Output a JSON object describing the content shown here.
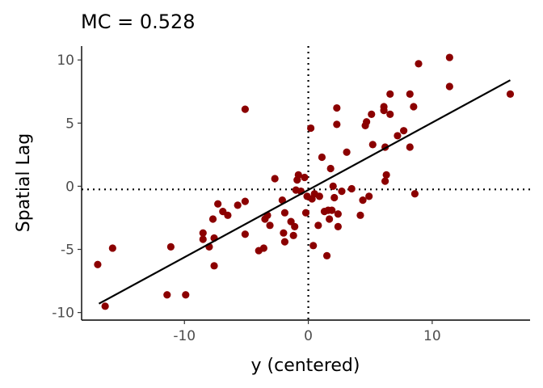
{
  "chart_data": {
    "type": "scatter",
    "title": "MC = 0.528",
    "xlabel": "y (centered)",
    "ylabel": "Spatial Lag",
    "xlim": [
      -18.3,
      17.9
    ],
    "ylim": [
      -10.6,
      11.1
    ],
    "x_ticks": [
      -10,
      0,
      10
    ],
    "x_tick_labels": [
      "-10",
      "0",
      "10"
    ],
    "y_ticks": [
      -10,
      -5,
      0,
      5,
      10
    ],
    "y_tick_labels": [
      "-10",
      "-5",
      "0",
      "5",
      "10"
    ],
    "grid": false,
    "legend": "none",
    "point_color": "#8b0000",
    "line_color": "#000000",
    "regression_line": {
      "x": [
        -16.9,
        16.3
      ],
      "y": [
        -9.3,
        8.4
      ]
    },
    "reference_lines": {
      "x_mean": 0.0,
      "y_mean": -0.25,
      "style": "dotted"
    },
    "points": [
      {
        "x": -17.0,
        "y": -6.2
      },
      {
        "x": -15.8,
        "y": -4.9
      },
      {
        "x": -16.4,
        "y": -9.5
      },
      {
        "x": -11.4,
        "y": -8.6
      },
      {
        "x": -11.1,
        "y": -4.8
      },
      {
        "x": -9.9,
        "y": -8.6
      },
      {
        "x": -8.5,
        "y": -3.7
      },
      {
        "x": -8.5,
        "y": -4.2
      },
      {
        "x": -8.0,
        "y": -4.8
      },
      {
        "x": -7.7,
        "y": -2.6
      },
      {
        "x": -7.6,
        "y": -4.1
      },
      {
        "x": -7.6,
        "y": -6.3
      },
      {
        "x": -7.3,
        "y": -1.4
      },
      {
        "x": -6.9,
        "y": -2.0
      },
      {
        "x": -6.5,
        "y": -2.3
      },
      {
        "x": -5.7,
        "y": -1.5
      },
      {
        "x": -5.1,
        "y": -1.2
      },
      {
        "x": -5.1,
        "y": -3.8
      },
      {
        "x": -5.1,
        "y": 6.1
      },
      {
        "x": -4.0,
        "y": -5.1
      },
      {
        "x": -3.6,
        "y": -4.9
      },
      {
        "x": -3.5,
        "y": -2.6
      },
      {
        "x": -3.3,
        "y": -2.3
      },
      {
        "x": -3.1,
        "y": -3.1
      },
      {
        "x": -2.7,
        "y": 0.6
      },
      {
        "x": -2.1,
        "y": -1.1
      },
      {
        "x": -2.0,
        "y": -3.7
      },
      {
        "x": -1.9,
        "y": -4.4
      },
      {
        "x": -1.9,
        "y": -2.1
      },
      {
        "x": -1.4,
        "y": -2.8
      },
      {
        "x": -1.2,
        "y": -3.9
      },
      {
        "x": -1.1,
        "y": -3.2
      },
      {
        "x": -1.0,
        "y": -0.3
      },
      {
        "x": -0.9,
        "y": 0.5
      },
      {
        "x": -0.8,
        "y": 0.9
      },
      {
        "x": -0.6,
        "y": -0.4
      },
      {
        "x": -0.3,
        "y": 0.7
      },
      {
        "x": -0.2,
        "y": -2.1
      },
      {
        "x": -0.1,
        "y": -0.8
      },
      {
        "x": 0.2,
        "y": 4.6
      },
      {
        "x": 0.3,
        "y": -1.0
      },
      {
        "x": 0.4,
        "y": -4.7
      },
      {
        "x": 0.5,
        "y": -0.6
      },
      {
        "x": 0.8,
        "y": -3.1
      },
      {
        "x": 0.9,
        "y": -0.8
      },
      {
        "x": 1.1,
        "y": 2.3
      },
      {
        "x": 1.3,
        "y": -2.0
      },
      {
        "x": 1.5,
        "y": -5.5
      },
      {
        "x": 1.6,
        "y": -1.9
      },
      {
        "x": 1.7,
        "y": -2.6
      },
      {
        "x": 1.8,
        "y": 1.4
      },
      {
        "x": 1.9,
        "y": -1.9
      },
      {
        "x": 2.0,
        "y": 0.0
      },
      {
        "x": 2.1,
        "y": -0.9
      },
      {
        "x": 2.3,
        "y": 6.2
      },
      {
        "x": 2.3,
        "y": 4.9
      },
      {
        "x": 2.4,
        "y": -3.2
      },
      {
        "x": 2.4,
        "y": -2.2
      },
      {
        "x": 2.7,
        "y": -0.4
      },
      {
        "x": 3.1,
        "y": 2.7
      },
      {
        "x": 3.5,
        "y": -0.2
      },
      {
        "x": 4.2,
        "y": -2.3
      },
      {
        "x": 4.4,
        "y": -1.1
      },
      {
        "x": 4.6,
        "y": 4.8
      },
      {
        "x": 4.7,
        "y": 5.1
      },
      {
        "x": 4.9,
        "y": -0.8
      },
      {
        "x": 5.1,
        "y": 5.7
      },
      {
        "x": 5.2,
        "y": 3.3
      },
      {
        "x": 6.1,
        "y": 6.0
      },
      {
        "x": 6.1,
        "y": 6.3
      },
      {
        "x": 6.2,
        "y": 3.1
      },
      {
        "x": 6.2,
        "y": 0.4
      },
      {
        "x": 6.3,
        "y": 0.9
      },
      {
        "x": 6.6,
        "y": 7.3
      },
      {
        "x": 6.6,
        "y": 5.7
      },
      {
        "x": 7.2,
        "y": 4.0
      },
      {
        "x": 7.7,
        "y": 4.4
      },
      {
        "x": 8.2,
        "y": 7.3
      },
      {
        "x": 8.2,
        "y": 3.1
      },
      {
        "x": 8.5,
        "y": 6.3
      },
      {
        "x": 8.6,
        "y": -0.6
      },
      {
        "x": 8.9,
        "y": 9.7
      },
      {
        "x": 11.4,
        "y": 10.2
      },
      {
        "x": 11.4,
        "y": 7.9
      },
      {
        "x": 16.3,
        "y": 7.3
      }
    ]
  }
}
